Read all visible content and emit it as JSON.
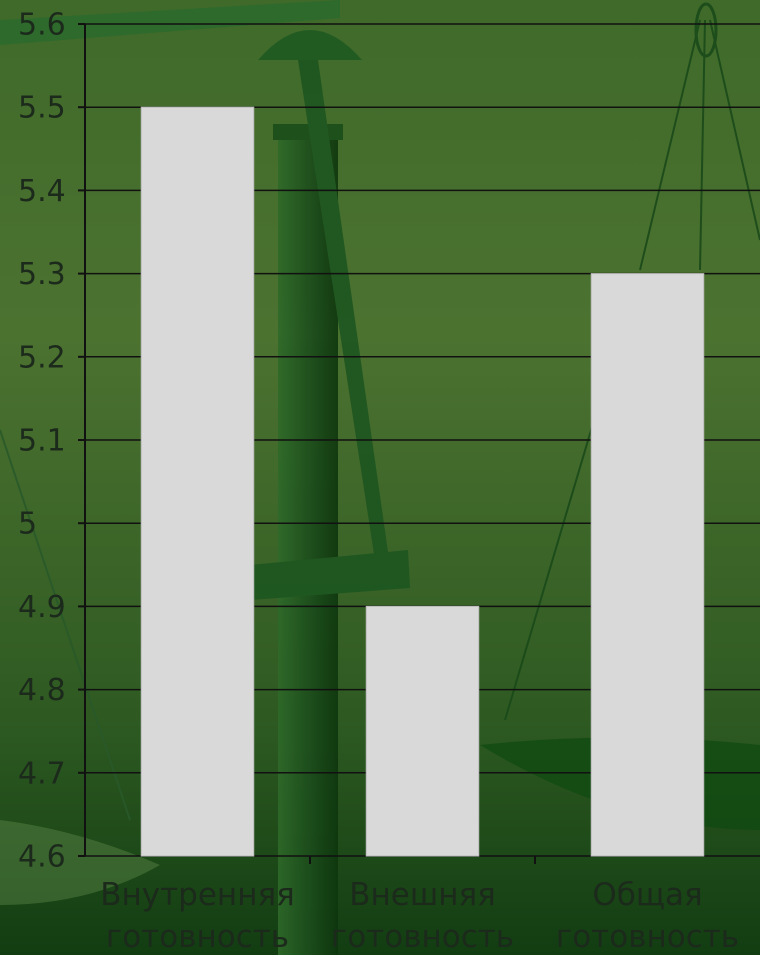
{
  "chart_data": {
    "type": "bar",
    "categories": [
      "Внутренняя готовность",
      "Внешняя готовность",
      "Общая готовность"
    ],
    "values": [
      5.5,
      4.9,
      5.3
    ],
    "color": "#d9d9d9",
    "ylim": [
      4.6,
      5.6
    ],
    "yticks": [
      4.6,
      4.7,
      4.8,
      4.9,
      5,
      5.1,
      5.2,
      5.3,
      5.4,
      5.5,
      5.6
    ],
    "grid": true
  }
}
